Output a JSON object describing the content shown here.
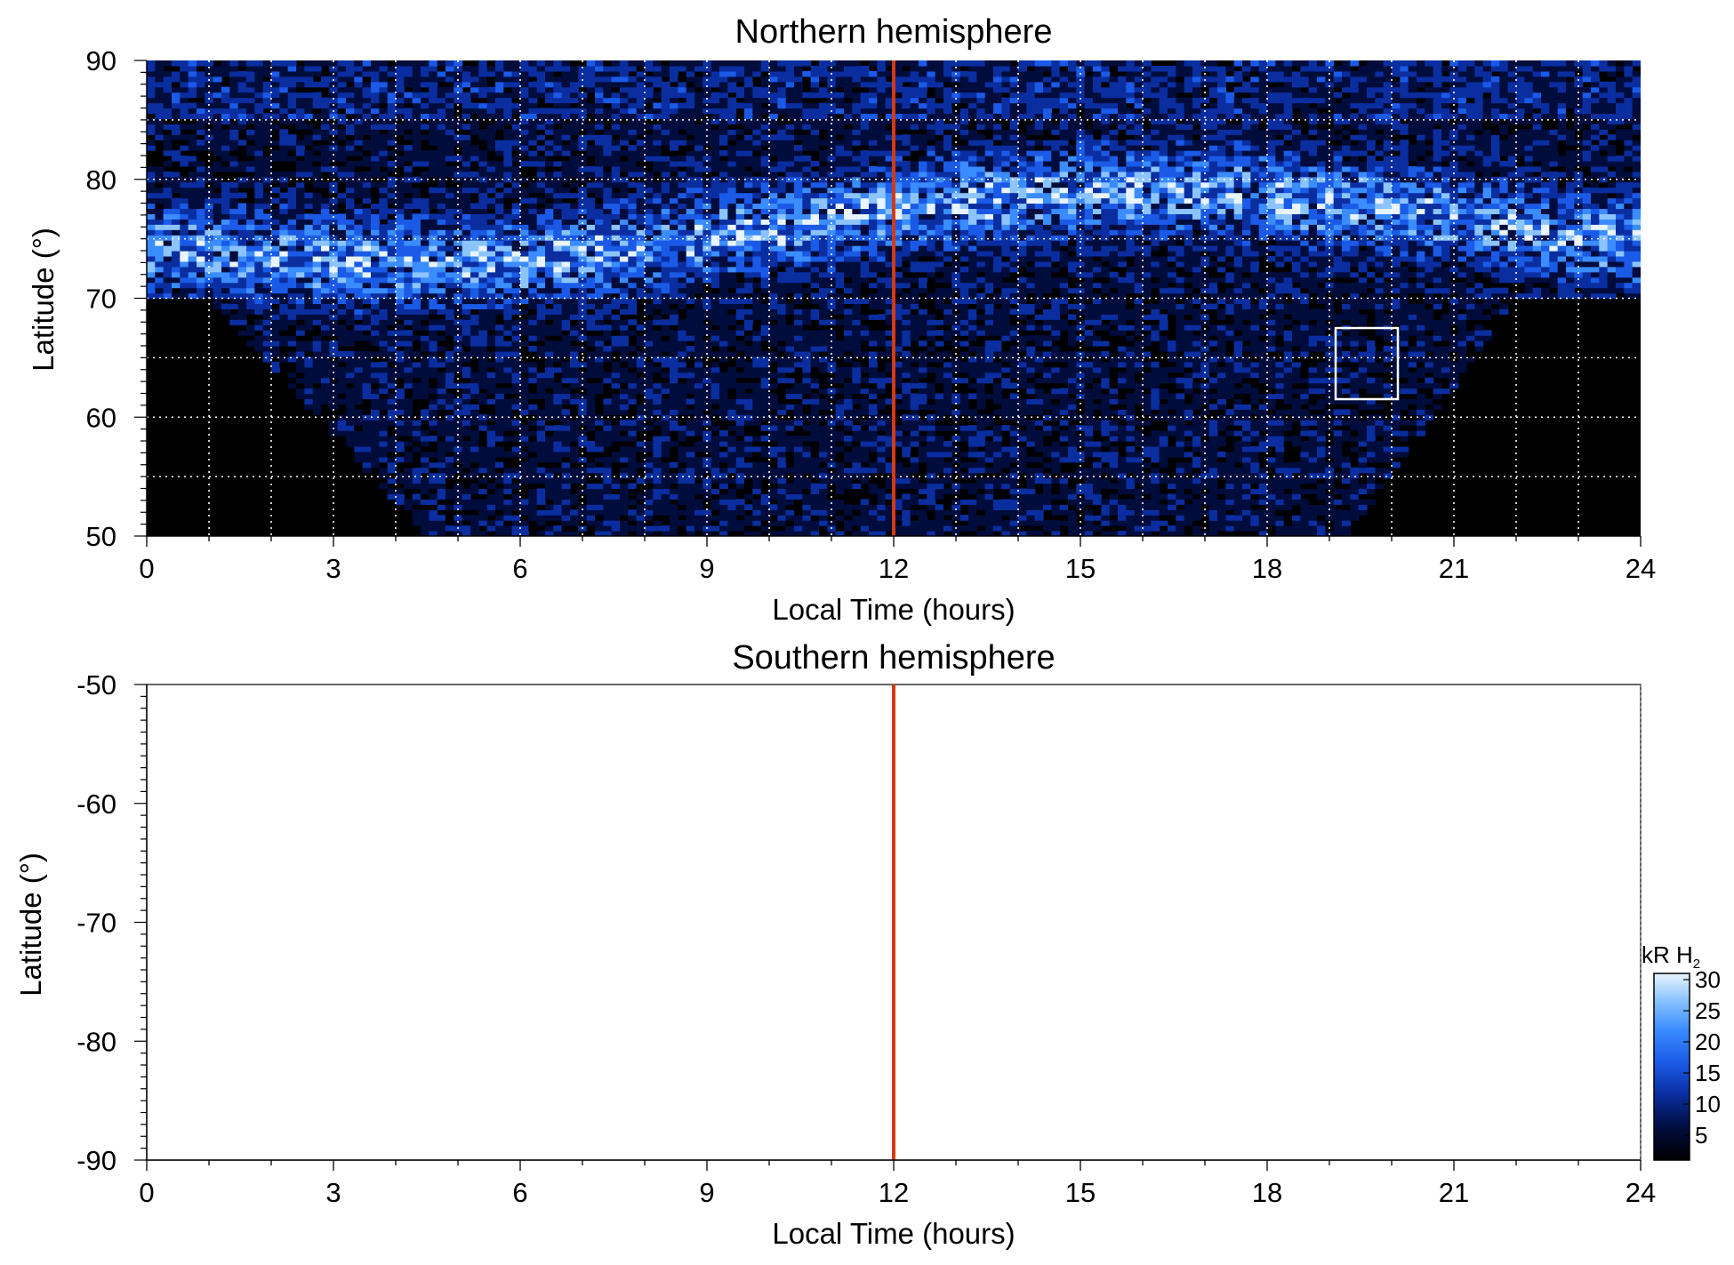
{
  "chart_data": [
    {
      "type": "heatmap",
      "title": "Northern hemisphere",
      "xlabel": "Local Time (hours)",
      "ylabel": "Latitude (°)",
      "xlim": [
        0,
        24
      ],
      "ylim": [
        50,
        90
      ],
      "x_ticks": [
        "0",
        "3",
        "6",
        "9",
        "12",
        "15",
        "18",
        "21",
        "24"
      ],
      "y_ticks": [
        "50",
        "60",
        "70",
        "80",
        "90"
      ],
      "grid": true,
      "colormap": "black-blue-white",
      "noon_line": {
        "x": 12,
        "color": "#d43a12"
      },
      "highlight_box": {
        "x_range": [
          19.1,
          20.1
        ],
        "y_range": [
          61.5,
          67.5
        ],
        "color": "#ffffff"
      },
      "data_coverage": "noisy H2 emission; auroral band near 73-80° latitude between 0 and 24 h local time"
    },
    {
      "type": "heatmap",
      "title": "Southern hemisphere",
      "xlabel": "Local Time (hours)",
      "ylabel": "Latitude (°)",
      "xlim": [
        0,
        24
      ],
      "ylim": [
        -90,
        -50
      ],
      "x_ticks": [
        "0",
        "3",
        "6",
        "9",
        "12",
        "15",
        "18",
        "21",
        "24"
      ],
      "y_ticks": [
        "-50",
        "-60",
        "-70",
        "-80",
        "-90"
      ],
      "grid": false,
      "noon_line": {
        "x": 12,
        "color": "#d43a12"
      },
      "data_coverage": "empty"
    }
  ],
  "colorbar": {
    "label_prefix": "kR H",
    "label_subscript": "2",
    "ticks": [
      "5",
      "10",
      "15",
      "20",
      "25",
      "30"
    ],
    "range": [
      1,
      31
    ],
    "colors": [
      "#000000",
      "#000c3c",
      "#0a2ea0",
      "#1a5ae6",
      "#3a8cff",
      "#8cc4ff",
      "#e8f4ff"
    ]
  }
}
